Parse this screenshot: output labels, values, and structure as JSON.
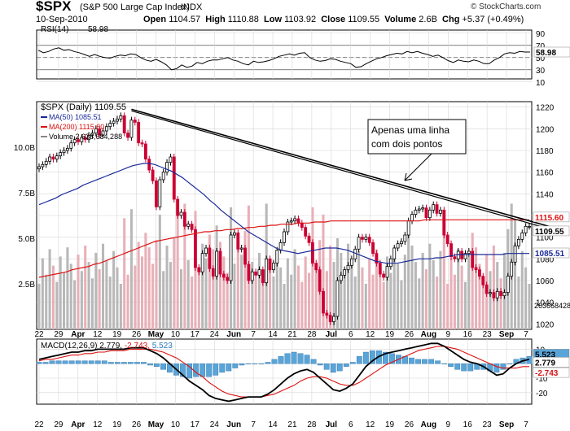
{
  "header": {
    "symbol": "$SPX",
    "description": "(S&P 500 Large Cap Index)",
    "exchange": "INDX",
    "watermark": "© StockCharts.com",
    "date": "10-Sep-2010",
    "open_label": "Open",
    "open": "1104.57",
    "high_label": "High",
    "high": "1110.88",
    "low_label": "Low",
    "low": "1103.92",
    "close_label": "Close",
    "close": "1109.55",
    "volume_label": "Volume",
    "volume": "2.6B",
    "chg_label": "Chg",
    "chg": "+5.37 (+0.49%)"
  },
  "colors": {
    "up": "#000000",
    "down": "#cc0033",
    "ma50": "#1a2a9a",
    "ma200": "#dd1111",
    "vol_up": "#b8b8b8",
    "vol_down": "#e8b0b8",
    "hist": "#5aa5d8",
    "grid": "#d6d6d6"
  },
  "chart_data": [
    {
      "type": "line",
      "title": "RSI(14) 58.98",
      "label": "RSI(14)",
      "label_value": "58.98",
      "ylim": [
        15,
        95
      ],
      "yticks": [
        "90",
        "70",
        "50",
        "30",
        "10"
      ],
      "reference_lines": [
        70,
        50,
        30
      ],
      "last_label": "58.98",
      "values": [
        62,
        58,
        60,
        64,
        66,
        62,
        63,
        60,
        58,
        55,
        52,
        55,
        52,
        50,
        49,
        52,
        54,
        53,
        56,
        55,
        50,
        46,
        44,
        47,
        43,
        38,
        30,
        32,
        38,
        34,
        36,
        42,
        40,
        44,
        46,
        46,
        48,
        50,
        46,
        44,
        40,
        38,
        44,
        42,
        43,
        45,
        48,
        52,
        54,
        56,
        54,
        57,
        58,
        50,
        46,
        44,
        45,
        48,
        47,
        44,
        42,
        40,
        34,
        35,
        40,
        44,
        48,
        50,
        53,
        55,
        57,
        56,
        60,
        58,
        60,
        57,
        55,
        52,
        54,
        50,
        45,
        42,
        46,
        44,
        43,
        46,
        44,
        40,
        40,
        46,
        50,
        56,
        58,
        57,
        60,
        59,
        59
      ]
    },
    {
      "type": "candlestick",
      "title": "$SPX (Daily) 1109.55",
      "ylim": [
        1015,
        1225
      ],
      "yticks": [
        1220,
        1200,
        1180,
        1160,
        1140,
        1120,
        1100,
        1080,
        1060,
        1040,
        1020
      ],
      "x_tick_labels": [
        "22",
        "29",
        "Apr",
        "12",
        "19",
        "26",
        "May",
        "10",
        "17",
        "24",
        "Jun",
        "7",
        "14",
        "21",
        "28",
        "Jul",
        "6",
        "12",
        "19",
        "26",
        "Aug",
        "9",
        "16",
        "23",
        "Sep",
        "7"
      ],
      "close": [
        1165,
        1167,
        1170,
        1174,
        1172,
        1175,
        1178,
        1180,
        1182,
        1187,
        1190,
        1188,
        1192,
        1190,
        1194,
        1196,
        1200,
        1194,
        1198,
        1202,
        1205,
        1207,
        1209,
        1212,
        1196,
        1192,
        1208,
        1206,
        1187,
        1186,
        1172,
        1162,
        1152,
        1128,
        1153,
        1160,
        1169,
        1174,
        1135,
        1120,
        1123,
        1110,
        1112,
        1107,
        1072,
        1068,
        1085,
        1090,
        1071,
        1064,
        1087,
        1066,
        1063,
        1060,
        1102,
        1104,
        1089,
        1090,
        1075,
        1060,
        1068,
        1065,
        1070,
        1058,
        1080,
        1070,
        1076,
        1088,
        1095,
        1105,
        1114,
        1115,
        1117,
        1113,
        1109,
        1101,
        1095,
        1076,
        1070,
        1050,
        1030,
        1028,
        1022,
        1027,
        1060,
        1065,
        1070,
        1074,
        1080,
        1089,
        1100,
        1098,
        1100,
        1095,
        1085,
        1076,
        1066,
        1063,
        1073,
        1080,
        1090,
        1094,
        1096,
        1102,
        1115,
        1121,
        1125,
        1126,
        1127,
        1118,
        1125,
        1130,
        1122,
        1125,
        1102,
        1094,
        1082,
        1080,
        1087,
        1080,
        1085,
        1087,
        1072,
        1070,
        1064,
        1056,
        1048,
        1049,
        1044,
        1050,
        1046,
        1049,
        1064,
        1077,
        1092,
        1098,
        1104,
        1110,
        1110
      ],
      "ma50": [
        1130,
        1132,
        1134,
        1136,
        1139,
        1141,
        1143,
        1145,
        1148,
        1150,
        1152,
        1154,
        1156,
        1158,
        1160,
        1162,
        1164,
        1166,
        1167,
        1168,
        1168,
        1167,
        1165,
        1163,
        1161,
        1158,
        1155,
        1151,
        1147,
        1143,
        1139,
        1134,
        1130,
        1125,
        1121,
        1117,
        1113,
        1109,
        1105,
        1102,
        1099,
        1096,
        1093,
        1090,
        1088,
        1087,
        1086,
        1085,
        1086,
        1087,
        1088,
        1089,
        1090,
        1090,
        1090,
        1089,
        1088,
        1086,
        1084,
        1082,
        1080,
        1078,
        1077,
        1076,
        1076,
        1076,
        1077,
        1078,
        1079,
        1080,
        1080,
        1080,
        1081,
        1081,
        1082,
        1083,
        1084,
        1084,
        1084,
        1084,
        1084,
        1084,
        1084,
        1084,
        1084,
        1085,
        1085,
        1085,
        1085,
        1085
      ],
      "ma200": [
        1063,
        1064,
        1065,
        1066,
        1067,
        1068,
        1070,
        1071,
        1072,
        1073,
        1075,
        1076,
        1078,
        1080,
        1082,
        1084,
        1086,
        1088,
        1090,
        1092,
        1094,
        1096,
        1097,
        1098,
        1099,
        1100,
        1101,
        1102,
        1103,
        1104,
        1105,
        1105,
        1106,
        1106,
        1107,
        1107,
        1108,
        1108,
        1109,
        1109,
        1110,
        1110,
        1111,
        1111,
        1112,
        1112,
        1112,
        1113,
        1113,
        1113,
        1114,
        1114,
        1114,
        1115,
        1115,
        1115,
        1115,
        1115,
        1115,
        1115,
        1115,
        1115,
        1115,
        1115,
        1115,
        1115,
        1115,
        1115,
        1115,
        1115,
        1116,
        1116,
        1116,
        1116,
        1116,
        1116,
        1116,
        1116,
        1116,
        1116,
        1116,
        1116,
        1116,
        1116,
        1116,
        1116,
        1116,
        1116,
        1116,
        1116
      ],
      "trendline": [
        {
          "date": "Apr 26",
          "value": 1218
        },
        {
          "date": "Sep 10",
          "value": 1112
        }
      ],
      "series": [
        {
          "name": "MA(50)",
          "value": "1085.51"
        },
        {
          "name": "MA(200)",
          "value": "1115.60"
        },
        {
          "name": "Volume",
          "value": "2,636,684,288"
        }
      ],
      "right_labels": [
        "1115.60",
        "1109.55",
        "1085.51"
      ],
      "volume_axis": {
        "ylim": [
          0,
          12.5
        ],
        "unit": "B",
        "ticks": [
          "10.0B",
          "7.5B",
          "5.0B",
          "2.5B"
        ]
      },
      "volume_last_label": "2636684288",
      "annotation": {
        "text_line1": "Apenas uma linha",
        "text_line2": "com dois pontos"
      }
    },
    {
      "type": "line",
      "title": "MACD(12,26,9) 2.779, -2.743, 5.523",
      "label": "MACD(12,26,9)",
      "v1": "2.779,",
      "v2": "-2.743,",
      "v3": "5.523",
      "ylim": [
        -28,
        17
      ],
      "yticks": [
        "10",
        "0",
        "-10",
        "-20"
      ],
      "right_labels": [
        "5.523",
        "2.779",
        "-2.743"
      ],
      "x_tick_labels": [
        "22",
        "29",
        "Apr",
        "12",
        "19",
        "26",
        "May",
        "10",
        "17",
        "24",
        "Jun",
        "7",
        "14",
        "21",
        "28",
        "Jul",
        "6",
        "12",
        "19",
        "26",
        "Aug",
        "9",
        "16",
        "23",
        "Sep",
        "7"
      ],
      "macd": [
        3,
        4,
        5,
        6,
        7,
        8,
        8,
        9,
        9,
        10,
        10,
        10,
        10,
        10,
        11,
        11,
        11,
        9,
        7,
        4,
        0,
        -4,
        -8,
        -12,
        -15,
        -18,
        -22,
        -24,
        -25,
        -26,
        -25,
        -24,
        -23,
        -23,
        -23,
        -21,
        -18,
        -14,
        -10,
        -7,
        -5,
        -4,
        -6,
        -10,
        -14,
        -18,
        -19,
        -17,
        -14,
        -8,
        -2,
        2,
        5,
        7,
        8,
        9,
        10,
        11,
        12,
        13,
        14,
        14,
        12,
        9,
        6,
        3,
        1,
        0,
        -2,
        -5,
        -8,
        -7,
        -3,
        0,
        2,
        3
      ],
      "signal": [
        2,
        3,
        3,
        4,
        5,
        6,
        6,
        7,
        7,
        8,
        8,
        9,
        9,
        9,
        10,
        10,
        10,
        10,
        9,
        8,
        6,
        4,
        1,
        -2,
        -6,
        -9,
        -13,
        -16,
        -19,
        -21,
        -22,
        -23,
        -23,
        -23,
        -23,
        -22,
        -21,
        -19,
        -17,
        -15,
        -12,
        -10,
        -9,
        -9,
        -10,
        -12,
        -14,
        -15,
        -15,
        -13,
        -10,
        -7,
        -4,
        -1,
        1,
        3,
        5,
        7,
        9,
        10,
        11,
        12,
        12,
        11,
        10,
        8,
        6,
        4,
        2,
        0,
        -2,
        -3,
        -3,
        -3,
        -2,
        -2
      ]
    }
  ]
}
